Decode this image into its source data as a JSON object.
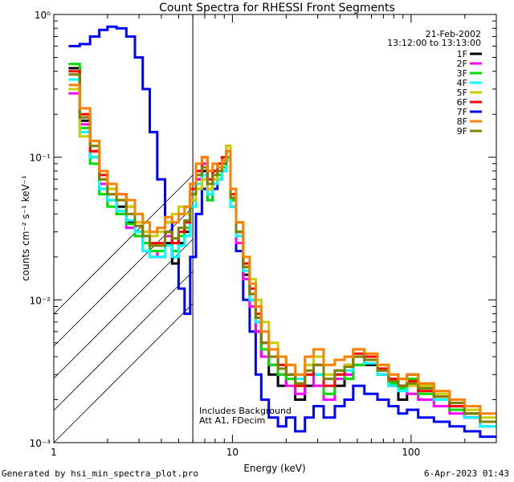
{
  "chart_data": {
    "type": "line",
    "title": "Count Spectra for RHESSI Front Segments",
    "xlabel": "Energy (keV)",
    "ylabel": "counts cm⁻² s⁻¹ keV⁻¹",
    "x_scale": "log",
    "y_scale": "log",
    "xlim": [
      1,
      300
    ],
    "ylim": [
      0.001,
      1.0
    ],
    "x_tick_labels": [
      "1",
      "10",
      "100"
    ],
    "y_tick_labels": [
      "10⁻³",
      "10⁻²",
      "10⁻¹",
      "10⁰"
    ],
    "legend_position": "top-right",
    "date": "21-Feb-2002",
    "time_range": "13:12:00 to 13:13:00",
    "annotations": [
      "Includes Background",
      "Att A1, FDecim"
    ],
    "shaded_region_xmax": 6,
    "x": [
      1.3,
      1.5,
      1.7,
      1.9,
      2.1,
      2.4,
      2.7,
      3.0,
      3.3,
      3.6,
      4.0,
      4.4,
      4.8,
      5.2,
      5.6,
      6.0,
      6.5,
      7.0,
      7.5,
      8.0,
      8.5,
      9.0,
      9.5,
      10.0,
      11.0,
      12.0,
      13.0,
      14.0,
      15.0,
      17.0,
      19.0,
      21.0,
      24.0,
      27.0,
      30.0,
      35.0,
      40.0,
      45.0,
      50.0,
      60.0,
      70.0,
      80.0,
      90.0,
      100.0,
      120.0,
      150.0,
      180.0,
      220.0,
      270.0
    ],
    "series": [
      {
        "name": "1F",
        "color": "#000000",
        "values": [
          0.42,
          0.18,
          0.1,
          0.06,
          0.05,
          0.045,
          0.035,
          0.03,
          0.025,
          0.02,
          0.02,
          0.025,
          0.018,
          0.025,
          0.03,
          0.05,
          0.07,
          0.08,
          0.06,
          0.07,
          0.08,
          0.09,
          0.11,
          0.05,
          0.03,
          0.015,
          0.01,
          0.006,
          0.004,
          0.003,
          0.0025,
          0.003,
          0.002,
          0.0025,
          0.003,
          0.002,
          0.0025,
          0.003,
          0.004,
          0.0035,
          0.003,
          0.0025,
          0.002,
          0.003,
          0.0025,
          0.002,
          0.0018,
          0.0015,
          0.0014
        ]
      },
      {
        "name": "2F",
        "color": "#ff00ff",
        "values": [
          0.28,
          0.17,
          0.11,
          0.065,
          0.05,
          0.04,
          0.032,
          0.028,
          0.025,
          0.022,
          0.02,
          0.028,
          0.025,
          0.03,
          0.035,
          0.05,
          0.07,
          0.09,
          0.06,
          0.08,
          0.07,
          0.09,
          0.1,
          0.045,
          0.025,
          0.014,
          0.009,
          0.006,
          0.004,
          0.0035,
          0.003,
          0.0025,
          0.0022,
          0.003,
          0.0025,
          0.002,
          0.0028,
          0.003,
          0.0035,
          0.004,
          0.003,
          0.0028,
          0.0025,
          0.0022,
          0.002,
          0.0018,
          0.0016,
          0.0015,
          0.0013
        ]
      },
      {
        "name": "3F",
        "color": "#00dd00",
        "values": [
          0.45,
          0.16,
          0.09,
          0.055,
          0.045,
          0.04,
          0.034,
          0.028,
          0.025,
          0.022,
          0.022,
          0.03,
          0.022,
          0.028,
          0.032,
          0.055,
          0.06,
          0.07,
          0.05,
          0.065,
          0.075,
          0.085,
          0.1,
          0.05,
          0.03,
          0.017,
          0.011,
          0.007,
          0.0045,
          0.0035,
          0.003,
          0.0028,
          0.0025,
          0.003,
          0.003,
          0.0022,
          0.003,
          0.0028,
          0.0035,
          0.0038,
          0.0032,
          0.0026,
          0.0024,
          0.0028,
          0.0022,
          0.002,
          0.0017,
          0.0016,
          0.0014
        ]
      },
      {
        "name": "4F",
        "color": "#00ffff",
        "values": [
          0.35,
          0.15,
          0.1,
          0.06,
          0.05,
          0.042,
          0.036,
          0.03,
          0.022,
          0.02,
          0.02,
          0.024,
          0.02,
          0.024,
          0.028,
          0.045,
          0.065,
          0.075,
          0.055,
          0.065,
          0.07,
          0.08,
          0.095,
          0.045,
          0.028,
          0.016,
          0.01,
          0.007,
          0.005,
          0.004,
          0.0035,
          0.003,
          0.0028,
          0.0035,
          0.003,
          0.0025,
          0.003,
          0.0032,
          0.004,
          0.0036,
          0.003,
          0.0025,
          0.0023,
          0.0026,
          0.0024,
          0.002,
          0.0018,
          0.0015,
          0.0013
        ]
      },
      {
        "name": "5F",
        "color": "#cccc00",
        "values": [
          0.3,
          0.14,
          0.12,
          0.07,
          0.06,
          0.05,
          0.045,
          0.035,
          0.03,
          0.028,
          0.03,
          0.035,
          0.04,
          0.045,
          0.04,
          0.05,
          0.06,
          0.07,
          0.06,
          0.07,
          0.08,
          0.09,
          0.12,
          0.06,
          0.035,
          0.02,
          0.014,
          0.01,
          0.007,
          0.005,
          0.004,
          0.0035,
          0.003,
          0.0035,
          0.004,
          0.003,
          0.0032,
          0.0035,
          0.0045,
          0.0042,
          0.0035,
          0.003,
          0.0028,
          0.0025,
          0.0025,
          0.0022,
          0.002,
          0.0017,
          0.0015
        ]
      },
      {
        "name": "6F",
        "color": "#ff0000",
        "values": [
          0.4,
          0.2,
          0.11,
          0.075,
          0.06,
          0.055,
          0.045,
          0.035,
          0.03,
          0.025,
          0.025,
          0.03,
          0.025,
          0.03,
          0.035,
          0.06,
          0.08,
          0.1,
          0.07,
          0.08,
          0.09,
          0.1,
          0.12,
          0.055,
          0.03,
          0.018,
          0.012,
          0.008,
          0.005,
          0.004,
          0.0035,
          0.003,
          0.0025,
          0.003,
          0.0035,
          0.0025,
          0.003,
          0.0035,
          0.0042,
          0.004,
          0.0033,
          0.0028,
          0.0025,
          0.0027,
          0.0023,
          0.0021,
          0.0018,
          0.0016,
          0.0014
        ]
      },
      {
        "name": "7F",
        "color": "#0000ff",
        "values": [
          0.6,
          0.62,
          0.7,
          0.78,
          0.82,
          0.8,
          0.7,
          0.5,
          0.3,
          0.15,
          0.07,
          0.035,
          0.02,
          0.012,
          0.008,
          0.02,
          0.04,
          0.06,
          0.05,
          0.06,
          0.07,
          0.08,
          0.1,
          0.045,
          0.022,
          0.01,
          0.006,
          0.003,
          0.002,
          0.0015,
          0.0013,
          0.0015,
          0.0012,
          0.0015,
          0.0018,
          0.0015,
          0.0018,
          0.002,
          0.0025,
          0.0022,
          0.002,
          0.0018,
          0.0016,
          0.0017,
          0.0015,
          0.0014,
          0.0013,
          0.0012,
          0.0011
        ]
      },
      {
        "name": "8F",
        "color": "#ff8000",
        "values": [
          0.32,
          0.22,
          0.13,
          0.08,
          0.065,
          0.055,
          0.05,
          0.04,
          0.035,
          0.03,
          0.032,
          0.038,
          0.035,
          0.04,
          0.045,
          0.065,
          0.09,
          0.1,
          0.08,
          0.09,
          0.085,
          0.095,
          0.11,
          0.06,
          0.035,
          0.02,
          0.013,
          0.009,
          0.006,
          0.0045,
          0.004,
          0.0035,
          0.003,
          0.004,
          0.0045,
          0.0035,
          0.0038,
          0.004,
          0.0045,
          0.0042,
          0.0035,
          0.003,
          0.0028,
          0.003,
          0.0026,
          0.0023,
          0.002,
          0.0018,
          0.0016
        ]
      },
      {
        "name": "9F",
        "color": "#808000",
        "values": [
          0.38,
          0.19,
          0.12,
          0.07,
          0.055,
          0.05,
          0.04,
          0.033,
          0.028,
          0.024,
          0.024,
          0.03,
          0.027,
          0.032,
          0.036,
          0.055,
          0.075,
          0.085,
          0.065,
          0.075,
          0.08,
          0.09,
          0.11,
          0.052,
          0.03,
          0.017,
          0.011,
          0.0075,
          0.005,
          0.004,
          0.0033,
          0.003,
          0.0026,
          0.0032,
          0.0035,
          0.0028,
          0.0032,
          0.0034,
          0.004,
          0.0038,
          0.0032,
          0.0027,
          0.0025,
          0.0026,
          0.0024,
          0.0021,
          0.0019,
          0.0016,
          0.0014
        ]
      }
    ]
  },
  "footer": {
    "generated_by": "Generated by hsi_min_spectra_plot.pro",
    "timestamp": "6-Apr-2023 01:43"
  }
}
